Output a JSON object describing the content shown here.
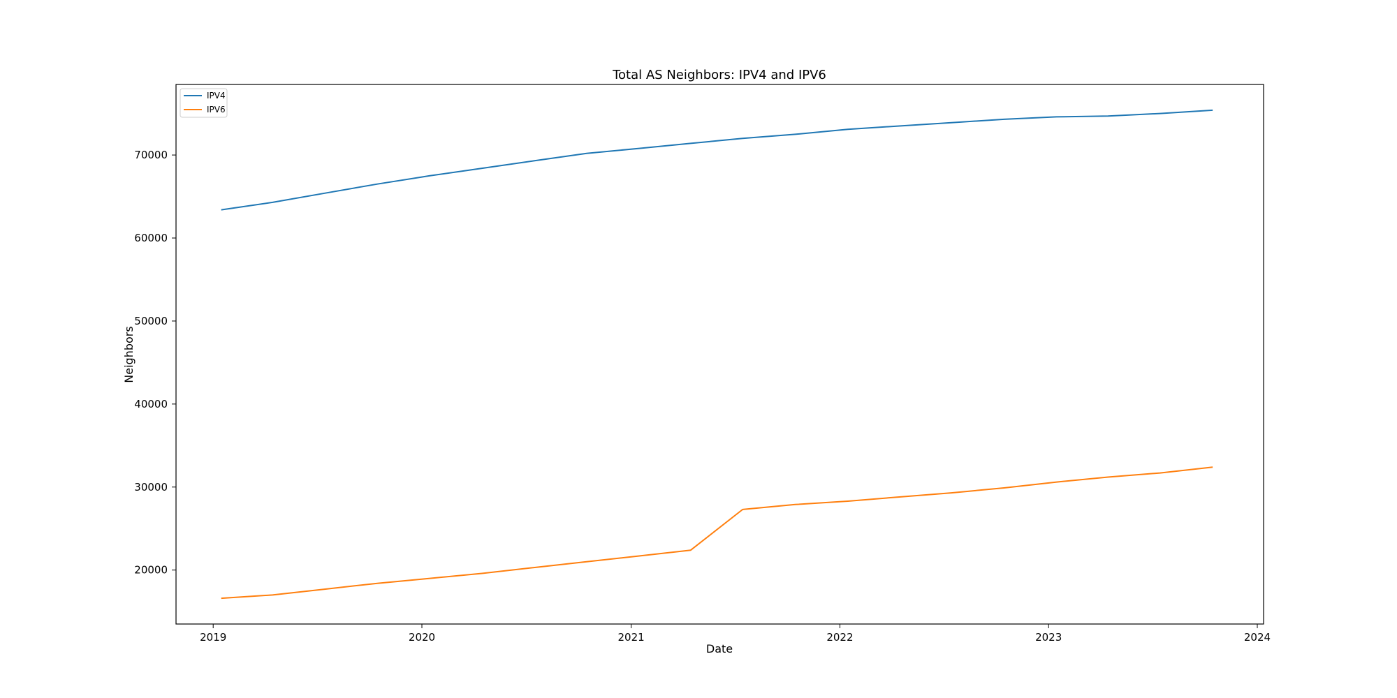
{
  "chart_data": {
    "type": "line",
    "title": "Total AS Neighbors: IPV4 and IPV6",
    "xlabel": "Date",
    "ylabel": "Neighbors",
    "x_axis_type": "date",
    "xlim": [
      "2018-10-28",
      "2024-01-12"
    ],
    "ylim": [
      13500,
      78500
    ],
    "x_ticks": [
      {
        "date": "2019-01-01",
        "label": "2019"
      },
      {
        "date": "2020-01-01",
        "label": "2020"
      },
      {
        "date": "2021-01-01",
        "label": "2021"
      },
      {
        "date": "2022-01-01",
        "label": "2022"
      },
      {
        "date": "2023-01-01",
        "label": "2023"
      },
      {
        "date": "2024-01-01",
        "label": "2024"
      }
    ],
    "y_ticks": [
      20000,
      30000,
      40000,
      50000,
      60000,
      70000
    ],
    "grid": false,
    "legend_position": "top-left",
    "series": [
      {
        "name": "IPV4",
        "color": "#1f77b4",
        "points": [
          [
            "2019-01-15",
            63400
          ],
          [
            "2019-04-15",
            64300
          ],
          [
            "2019-07-15",
            65400
          ],
          [
            "2019-10-15",
            66500
          ],
          [
            "2020-01-15",
            67500
          ],
          [
            "2020-04-15",
            68400
          ],
          [
            "2020-07-15",
            69300
          ],
          [
            "2020-10-15",
            70200
          ],
          [
            "2021-01-15",
            70800
          ],
          [
            "2021-04-15",
            71400
          ],
          [
            "2021-07-15",
            72000
          ],
          [
            "2021-10-15",
            72500
          ],
          [
            "2022-01-15",
            73100
          ],
          [
            "2022-04-15",
            73500
          ],
          [
            "2022-07-15",
            73900
          ],
          [
            "2022-10-15",
            74300
          ],
          [
            "2023-01-15",
            74600
          ],
          [
            "2023-04-15",
            74700
          ],
          [
            "2023-07-15",
            75000
          ],
          [
            "2023-10-15",
            75400
          ]
        ]
      },
      {
        "name": "IPV6",
        "color": "#ff7f0e",
        "points": [
          [
            "2019-01-15",
            16600
          ],
          [
            "2019-04-15",
            17000
          ],
          [
            "2019-07-15",
            17700
          ],
          [
            "2019-10-15",
            18400
          ],
          [
            "2020-01-15",
            19000
          ],
          [
            "2020-04-15",
            19600
          ],
          [
            "2020-07-15",
            20300
          ],
          [
            "2020-10-15",
            21000
          ],
          [
            "2021-01-15",
            21700
          ],
          [
            "2021-04-15",
            22400
          ],
          [
            "2021-07-15",
            27300
          ],
          [
            "2021-10-15",
            27900
          ],
          [
            "2022-01-15",
            28300
          ],
          [
            "2022-04-15",
            28800
          ],
          [
            "2022-07-15",
            29300
          ],
          [
            "2022-10-15",
            29900
          ],
          [
            "2023-01-15",
            30600
          ],
          [
            "2023-04-15",
            31200
          ],
          [
            "2023-07-15",
            31700
          ],
          [
            "2023-10-15",
            32400
          ]
        ]
      }
    ]
  }
}
